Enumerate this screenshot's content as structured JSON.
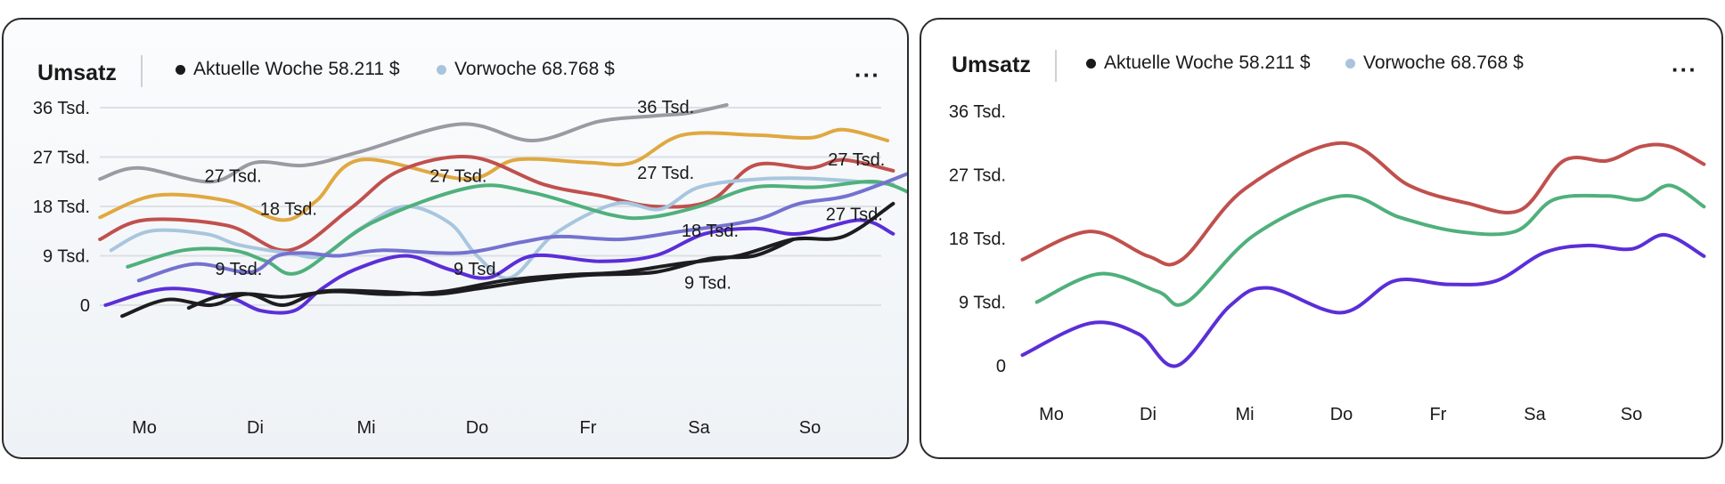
{
  "cards": [
    {
      "title": "Umsatz",
      "legend": [
        {
          "label": "Aktuelle Woche 58.211 $",
          "color": "#1a1a1a"
        },
        {
          "label": "Vorwoche 68.768 $",
          "color": "#a9c4dc"
        }
      ],
      "more_label": "···"
    },
    {
      "title": "Umsatz",
      "legend": [
        {
          "label": "Aktuelle Woche 58.211 $",
          "color": "#1a1a1a"
        },
        {
          "label": "Vorwoche 68.768 $",
          "color": "#a9c4dc"
        }
      ],
      "more_label": "···"
    }
  ],
  "chart_data": [
    {
      "type": "line",
      "title": "Umsatz",
      "categories": [
        "Mo",
        "Di",
        "Mi",
        "Do",
        "Fr",
        "Sa",
        "So"
      ],
      "y_ticks": [
        "36 Tsd.",
        "27 Tsd.",
        "18 Tsd.",
        "9 Tsd.",
        "0"
      ],
      "ylim": [
        0,
        36000
      ],
      "grid": true,
      "series": [
        {
          "color": "#9a9aa2",
          "x": [
            -0.4,
            -0.05,
            0.6,
            1.0,
            1.45,
            1.95,
            2.85,
            3.5,
            4.1,
            4.6,
            4.9,
            5.25
          ],
          "values": [
            23000,
            25000,
            22500,
            26000,
            25500,
            28000,
            33000,
            30000,
            33500,
            34500,
            35000,
            36500
          ]
        },
        {
          "color": "#e0a840",
          "x": [
            -0.4,
            0.1,
            0.75,
            1.25,
            1.55,
            1.95,
            2.9,
            3.35,
            4.0,
            4.4,
            4.85,
            5.5,
            6.0,
            6.3,
            6.7
          ],
          "values": [
            16000,
            20000,
            19000,
            15500,
            19000,
            26500,
            23000,
            26500,
            26000,
            26000,
            31000,
            31000,
            30500,
            32000,
            30000
          ]
        },
        {
          "color": "#c0504d",
          "x": [
            -0.4,
            0.0,
            0.75,
            1.3,
            1.85,
            2.3,
            2.95,
            3.6,
            4.1,
            4.6,
            5.1,
            5.5,
            6.0,
            6.3,
            6.75
          ],
          "values": [
            12000,
            15500,
            14500,
            10000,
            17500,
            24500,
            27000,
            22000,
            20000,
            18000,
            19000,
            25500,
            25000,
            26500,
            24500
          ]
        },
        {
          "color": "#a8c6de",
          "x": [
            -0.3,
            0.05,
            0.55,
            0.85,
            1.3,
            1.6,
            1.95,
            2.35,
            2.75,
            3.0,
            3.3,
            3.7,
            4.25,
            4.65,
            5.0,
            5.55,
            6.1,
            6.75
          ],
          "values": [
            10000,
            13500,
            13000,
            11000,
            9500,
            9000,
            14000,
            18000,
            15000,
            9000,
            5000,
            13000,
            18500,
            17500,
            21500,
            23000,
            23000,
            22000
          ]
        },
        {
          "color": "#4fb07c",
          "x": [
            -0.15,
            0.35,
            0.8,
            1.1,
            1.4,
            2.05,
            2.95,
            3.5,
            4.2,
            4.55,
            5.0,
            5.5,
            6.05,
            6.6,
            6.95
          ],
          "values": [
            7000,
            10000,
            10000,
            8000,
            6000,
            15000,
            21500,
            20500,
            16500,
            16000,
            18000,
            21500,
            21500,
            22500,
            20000
          ]
        },
        {
          "color": "#7472d0",
          "x": [
            -0.05,
            0.45,
            0.95,
            1.2,
            1.45,
            1.75,
            2.15,
            2.85,
            3.4,
            3.75,
            4.3,
            4.85,
            5.5,
            5.9,
            6.35,
            6.95
          ],
          "values": [
            4500,
            7500,
            6000,
            9000,
            9500,
            9000,
            10000,
            9500,
            11500,
            12500,
            12000,
            13500,
            15500,
            18500,
            20000,
            24500
          ]
        },
        {
          "color": "#5b2ed8",
          "x": [
            -0.35,
            0.2,
            0.75,
            1.05,
            1.35,
            1.6,
            1.9,
            2.35,
            2.75,
            3.1,
            3.5,
            4.1,
            4.6,
            5.05,
            5.5,
            5.9,
            6.45,
            6.75
          ],
          "values": [
            0,
            3000,
            1500,
            -1000,
            -1000,
            3000,
            6500,
            9000,
            6500,
            5000,
            9000,
            8000,
            9000,
            13000,
            14000,
            13000,
            15500,
            13000
          ]
        },
        {
          "color": "#1d1d1f",
          "x": [
            -0.2,
            0.2,
            0.6,
            0.9,
            1.25,
            1.7,
            2.2,
            2.7,
            3.25,
            3.8,
            4.3,
            4.8,
            5.35,
            5.85,
            6.3,
            6.75
          ],
          "values": [
            -2000,
            1000,
            0,
            2000,
            1500,
            2500,
            2000,
            2500,
            4500,
            5500,
            6000,
            7500,
            9000,
            12000,
            12500,
            18500
          ]
        },
        {
          "color": "#1d1d1f",
          "x": [
            0.4,
            0.65,
            0.95,
            1.25,
            1.6,
            2.1,
            2.6,
            3.0,
            3.5,
            4.0,
            4.6,
            5.1,
            5.5,
            5.85
          ],
          "values": [
            -500,
            1500,
            2000,
            0,
            2500,
            2500,
            2000,
            3000,
            4500,
            5500,
            6000,
            8500,
            9000,
            12000
          ]
        }
      ],
      "annotations": [
        {
          "text": "27 Tsd.",
          "x": 0.8,
          "y": 22500
        },
        {
          "text": "18 Tsd.",
          "x": 1.3,
          "y": 16500
        },
        {
          "text": "9 Tsd.",
          "x": 0.85,
          "y": 5500
        },
        {
          "text": "27 Tsd.",
          "x": 2.83,
          "y": 22500
        },
        {
          "text": "9 Tsd.",
          "x": 3.0,
          "y": 5500
        },
        {
          "text": "36 Tsd.",
          "x": 4.7,
          "y": 35000
        },
        {
          "text": "27 Tsd.",
          "x": 4.7,
          "y": 23000
        },
        {
          "text": "18 Tsd.",
          "x": 5.1,
          "y": 12500
        },
        {
          "text": "9 Tsd.",
          "x": 5.08,
          "y": 3000
        },
        {
          "text": "27 Tsd.",
          "x": 6.42,
          "y": 25500
        },
        {
          "text": "27 Tsd.",
          "x": 6.4,
          "y": 15500
        }
      ]
    },
    {
      "type": "line",
      "title": "Umsatz",
      "categories": [
        "Mo",
        "Di",
        "Mi",
        "Do",
        "Fr",
        "Sa",
        "So"
      ],
      "y_ticks": [
        "36 Tsd.",
        "27 Tsd.",
        "18 Tsd.",
        "9 Tsd.",
        "0"
      ],
      "ylim": [
        0,
        36000
      ],
      "grid": false,
      "series": [
        {
          "color": "#c0504d",
          "x": [
            -0.3,
            0.4,
            1.0,
            1.35,
            2.0,
            3.0,
            3.7,
            4.3,
            4.85,
            5.3,
            5.75,
            6.1,
            6.4,
            6.75
          ],
          "values": [
            15000,
            19000,
            15500,
            15000,
            25000,
            31500,
            25500,
            23000,
            22000,
            29000,
            29000,
            31000,
            31000,
            28500
          ]
        },
        {
          "color": "#4fb07c",
          "x": [
            -0.15,
            0.5,
            1.1,
            1.4,
            2.1,
            3.0,
            3.6,
            4.2,
            4.8,
            5.2,
            5.75,
            6.1,
            6.4,
            6.75
          ],
          "values": [
            9000,
            13000,
            10500,
            9000,
            18500,
            24000,
            21000,
            19000,
            19000,
            23500,
            24000,
            23500,
            25500,
            22500
          ]
        },
        {
          "color": "#5b2ed8",
          "x": [
            -0.3,
            0.4,
            0.9,
            1.3,
            1.85,
            2.25,
            3.0,
            3.55,
            4.1,
            4.6,
            5.1,
            5.55,
            6.0,
            6.35,
            6.75
          ],
          "values": [
            1500,
            6000,
            4500,
            0,
            8500,
            11000,
            7500,
            12000,
            11500,
            12000,
            16000,
            17000,
            16500,
            18500,
            15500
          ]
        }
      ],
      "annotations": []
    }
  ]
}
